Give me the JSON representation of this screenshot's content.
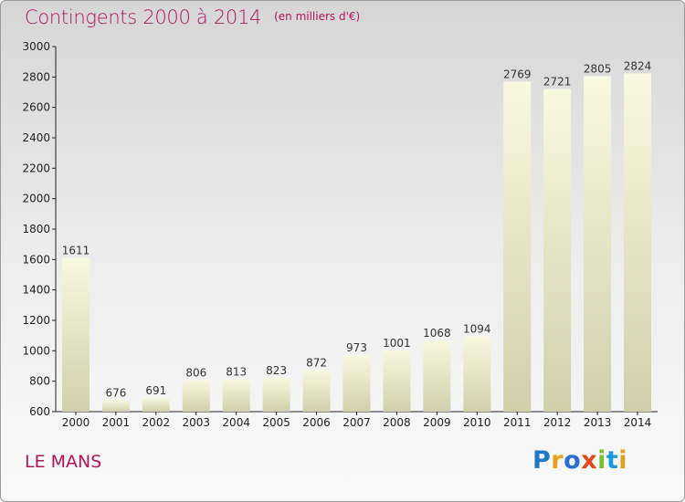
{
  "header": {
    "title": "Contingents 2000 à 2014",
    "subtitle": "(en milliers d'€)"
  },
  "footer": {
    "city": "LE MANS",
    "brand": "Proxiti",
    "brand_colors": [
      "#1e78c8",
      "#e8a020",
      "#2a6fd0",
      "#e04a1a",
      "#7bbf2a",
      "#1a9ad8",
      "#e0a020"
    ]
  },
  "chart_data": {
    "type": "bar",
    "title": "Contingents 2000 à 2014",
    "subtitle": "(en milliers d'€)",
    "xlabel": "",
    "ylabel": "",
    "categories": [
      "2000",
      "2001",
      "2002",
      "2003",
      "2004",
      "2005",
      "2006",
      "2007",
      "2008",
      "2009",
      "2010",
      "2011",
      "2012",
      "2013",
      "2014"
    ],
    "values": [
      1611,
      676,
      691,
      806,
      813,
      823,
      872,
      973,
      1001,
      1068,
      1094,
      2769,
      2721,
      2805,
      2824
    ],
    "ylim": [
      600,
      3000
    ],
    "yticks": [
      600,
      800,
      1000,
      1200,
      1400,
      1600,
      1800,
      2000,
      2200,
      2400,
      2600,
      2800,
      3000
    ],
    "grid": false,
    "bar_color_top": "#f7f9e0",
    "bar_color_bottom": "#d0d0ab",
    "axis_color": "#222222"
  }
}
